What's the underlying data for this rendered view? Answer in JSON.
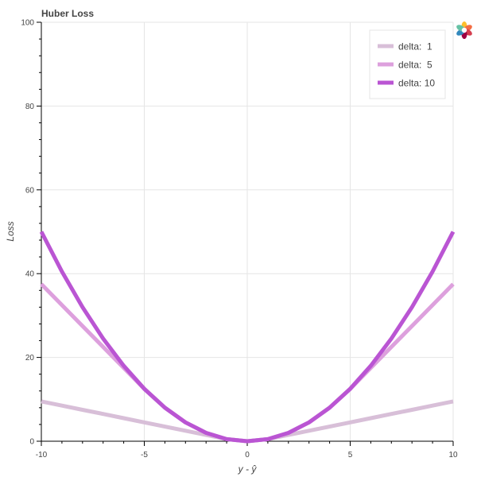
{
  "chart_data": {
    "type": "line",
    "title": "Huber Loss",
    "xlabel": "y - ŷ",
    "ylabel": "Loss",
    "xlim": [
      -10,
      10
    ],
    "ylim": [
      0,
      100
    ],
    "x_ticks": [
      -10,
      -5,
      0,
      5,
      10
    ],
    "y_ticks": [
      0,
      20,
      40,
      60,
      80,
      100
    ],
    "x_tick_labels": [
      "-10",
      "-5",
      "0",
      "5",
      "10"
    ],
    "y_tick_labels": [
      "0",
      "20",
      "40",
      "60",
      "80",
      "100"
    ],
    "grid": true,
    "legend_position": "top-right",
    "x": [
      -10,
      -9,
      -8,
      -7,
      -6,
      -5,
      -4,
      -3,
      -2,
      -1,
      0,
      1,
      2,
      3,
      4,
      5,
      6,
      7,
      8,
      9,
      10
    ],
    "series": [
      {
        "name": "delta:  1",
        "color": "#d8bfd8",
        "values": [
          9.5,
          8.5,
          7.5,
          6.5,
          5.5,
          4.5,
          3.5,
          2.5,
          1.5,
          0.5,
          0,
          0.5,
          1.5,
          2.5,
          3.5,
          4.5,
          5.5,
          6.5,
          7.5,
          8.5,
          9.5
        ]
      },
      {
        "name": "delta:  5",
        "color": "#dda0dd",
        "values": [
          37.5,
          32.5,
          27.5,
          22.5,
          17.5,
          12.5,
          8,
          4.5,
          2,
          0.5,
          0,
          0.5,
          2,
          4.5,
          8,
          12.5,
          17.5,
          22.5,
          27.5,
          32.5,
          37.5
        ]
      },
      {
        "name": "delta: 10",
        "color": "#ba55d3",
        "values": [
          50,
          40.5,
          32,
          24.5,
          18,
          12.5,
          8,
          4.5,
          2,
          0.5,
          0,
          0.5,
          2,
          4.5,
          8,
          12.5,
          18,
          24.5,
          32,
          40.5,
          50
        ]
      }
    ]
  }
}
